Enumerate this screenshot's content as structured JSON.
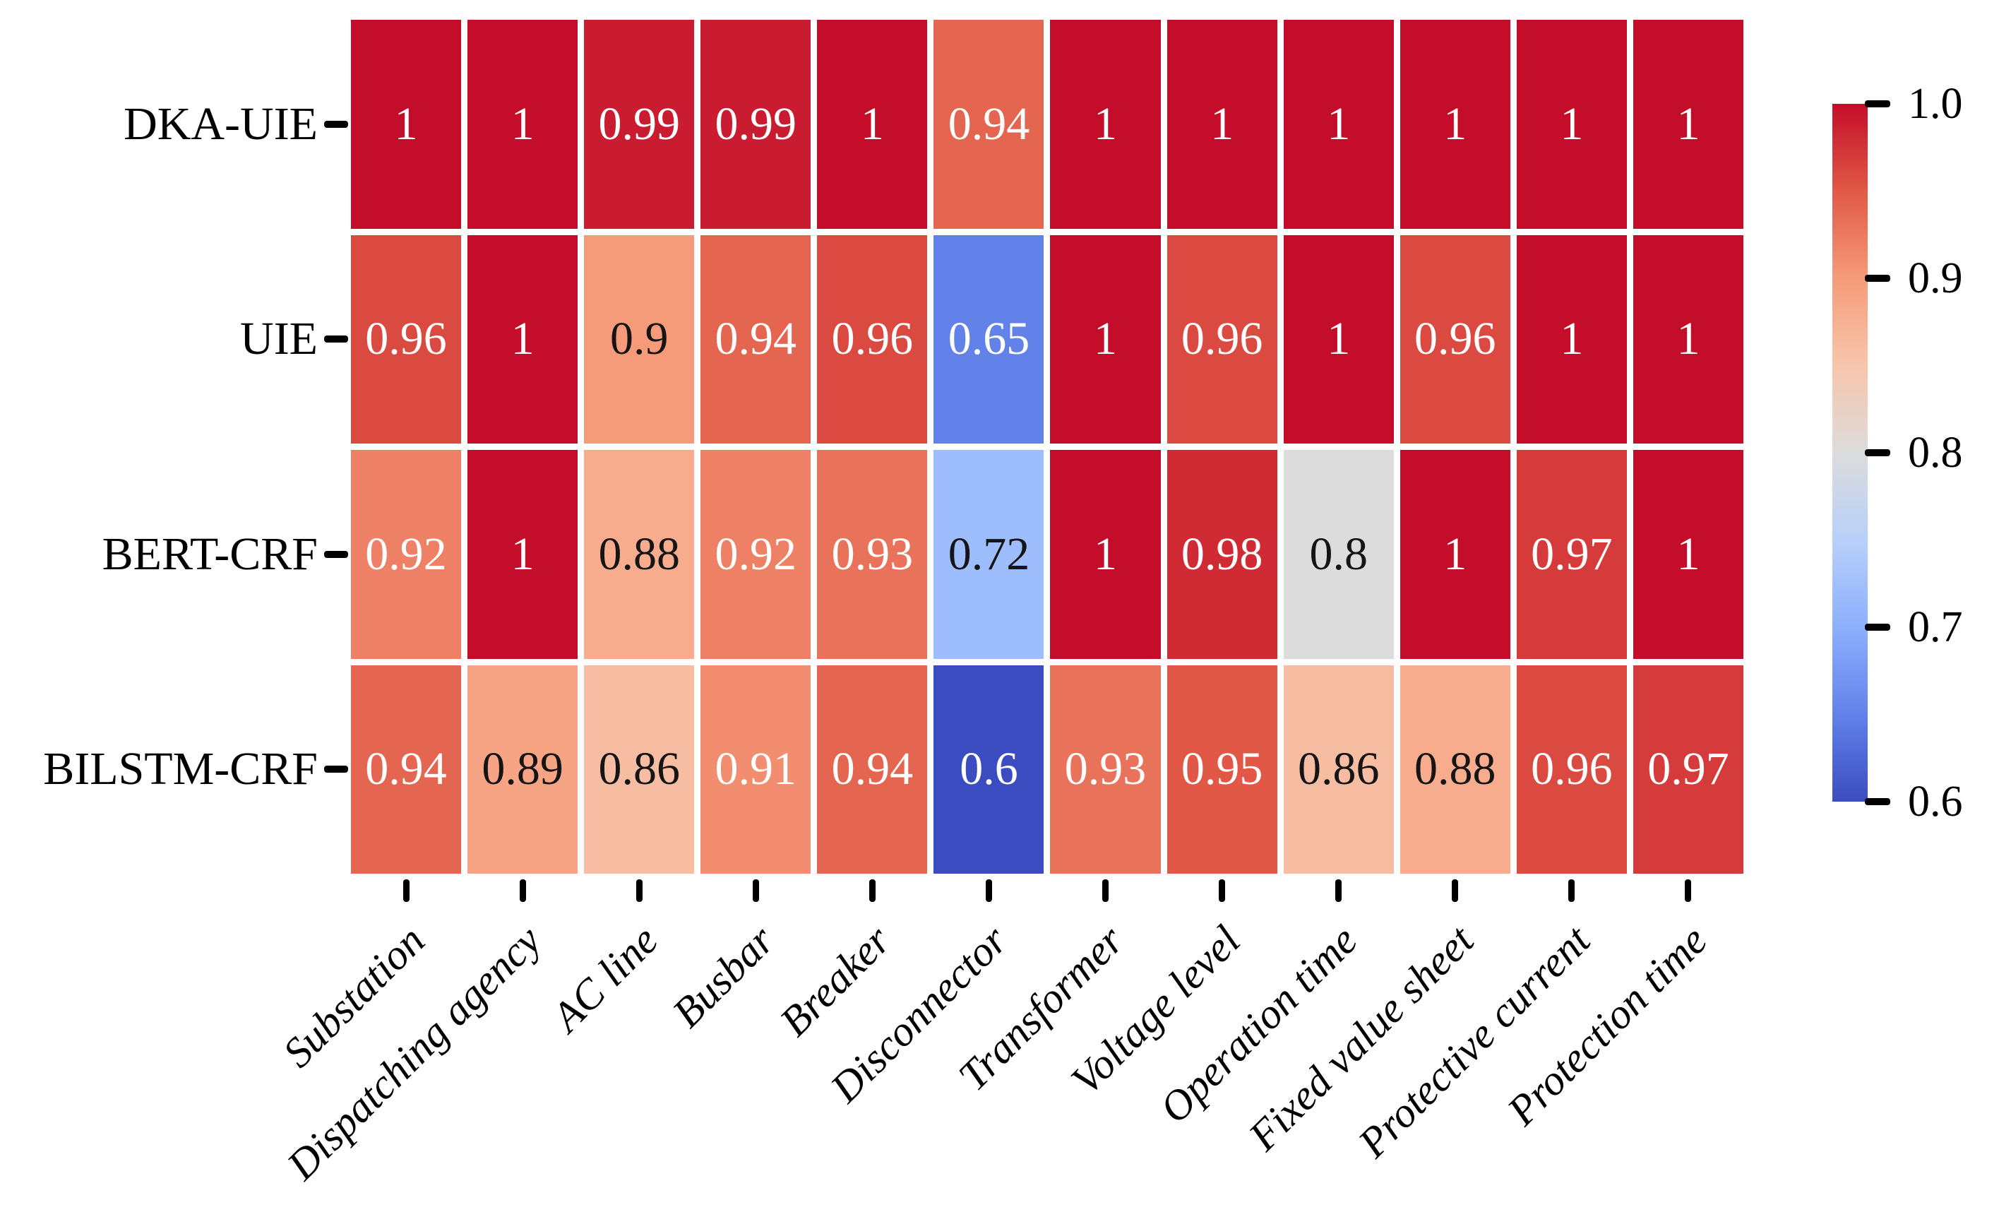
{
  "figure": {
    "background": "#ffffff",
    "text_color": "#000000"
  },
  "chart_data": {
    "type": "heatmap",
    "title": "",
    "rows": [
      "DKA-UIE",
      "UIE",
      "BERT-CRF",
      "BILSTM-CRF"
    ],
    "columns": [
      "Substation",
      "Dispatching agency",
      "AC line",
      "Busbar",
      "Breaker",
      "Disconnector",
      "Transformer",
      "Voltage level",
      "Operation time",
      "Fixed value sheet",
      "Protective current",
      "Protection time"
    ],
    "values": [
      [
        1,
        1,
        0.99,
        0.99,
        1,
        0.94,
        1,
        1,
        1,
        1,
        1,
        1
      ],
      [
        0.96,
        1,
        0.9,
        0.94,
        0.96,
        0.65,
        1,
        0.96,
        1,
        0.96,
        1,
        1
      ],
      [
        0.92,
        1,
        0.88,
        0.92,
        0.93,
        0.72,
        1,
        0.98,
        0.8,
        1,
        0.97,
        1
      ],
      [
        0.94,
        0.89,
        0.86,
        0.91,
        0.94,
        0.6,
        0.93,
        0.95,
        0.86,
        0.88,
        0.96,
        0.97
      ]
    ],
    "annotations_shown": true,
    "vmin": 0.6,
    "vmax": 1.0,
    "colorbar": {
      "position": "right",
      "tick_labels": [
        "1.0",
        "0.9",
        "0.8",
        "0.7",
        "0.6"
      ]
    },
    "colormap": {
      "name": "coolwarm",
      "stops": [
        [
          0.0,
          "#3b4cc0"
        ],
        [
          0.125,
          "#6282ea"
        ],
        [
          0.25,
          "#8db0fe"
        ],
        [
          0.375,
          "#b8d0f9"
        ],
        [
          0.5,
          "#dcdcdc"
        ],
        [
          0.625,
          "#f7c6ac"
        ],
        [
          0.75,
          "#f69b79"
        ],
        [
          0.875,
          "#e15946"
        ],
        [
          1.0,
          "#c40d2a"
        ]
      ]
    },
    "grid": false
  }
}
